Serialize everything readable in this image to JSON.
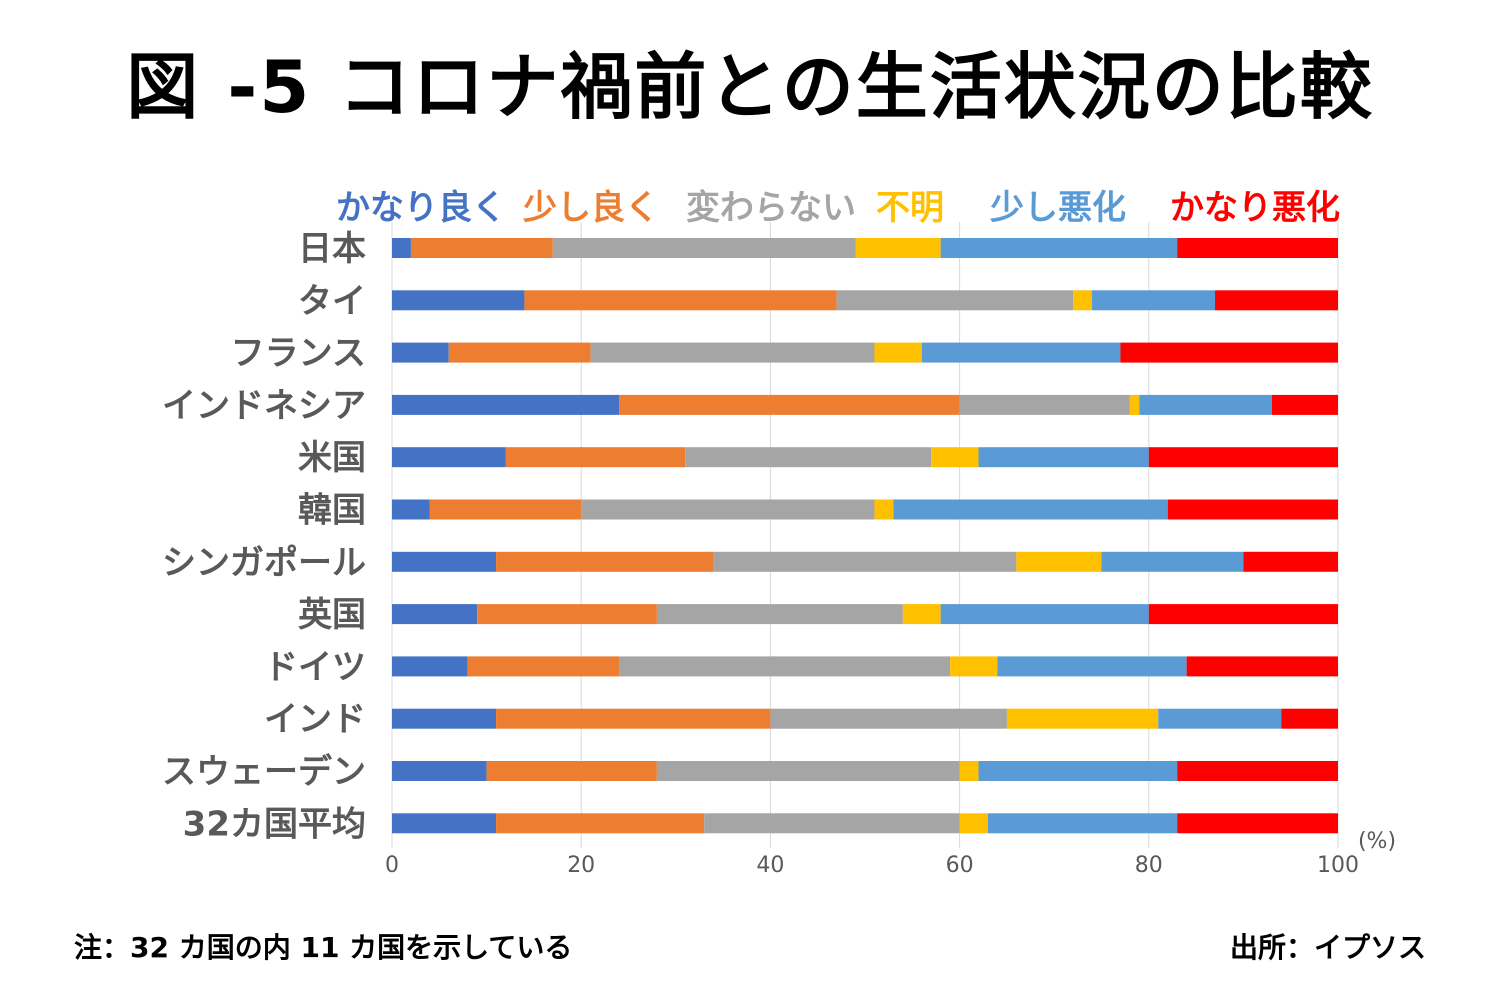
{
  "title": "図 -5 コロナ禍前との生活状況の比較",
  "note": "注：32 カ国の内 11 カ国を示している",
  "source": "出所：イプソス",
  "chart_data": {
    "type": "bar",
    "orientation": "horizontal",
    "stacked": true,
    "title": "図 -5 コロナ禍前との生活状況の比較",
    "xlabel": "",
    "ylabel": "",
    "unit": "(%)",
    "xlim": [
      0,
      100
    ],
    "xticks": [
      0,
      20,
      40,
      60,
      80,
      100
    ],
    "grid": true,
    "legend_position": "top",
    "categories": [
      "日本",
      "タイ",
      "フランス",
      "インドネシア",
      "米国",
      "韓国",
      "シンガポール",
      "英国",
      "ドイツ",
      "インド",
      "スウェーデン",
      "32カ国平均"
    ],
    "series": [
      {
        "name": "かなり良く",
        "color": "#4472C4",
        "values": [
          2,
          14,
          6,
          24,
          12,
          4,
          11,
          9,
          8,
          11,
          10,
          11
        ]
      },
      {
        "name": "少し良く",
        "color": "#ED7D31",
        "values": [
          15,
          33,
          15,
          36,
          19,
          16,
          23,
          19,
          16,
          29,
          18,
          22
        ]
      },
      {
        "name": "変わらない",
        "color": "#A5A5A5",
        "values": [
          32,
          25,
          30,
          18,
          26,
          31,
          32,
          26,
          35,
          25,
          32,
          27
        ]
      },
      {
        "name": "不明",
        "color": "#FFC000",
        "values": [
          9,
          2,
          5,
          1,
          5,
          2,
          9,
          4,
          5,
          16,
          2,
          3
        ]
      },
      {
        "name": "少し悪化",
        "color": "#5B9BD5",
        "values": [
          25,
          13,
          21,
          14,
          18,
          29,
          15,
          22,
          20,
          13,
          21,
          20
        ]
      },
      {
        "name": "かなり悪化",
        "color": "#FF0000",
        "values": [
          17,
          13,
          23,
          7,
          20,
          18,
          10,
          20,
          16,
          6,
          17,
          17
        ]
      }
    ]
  }
}
